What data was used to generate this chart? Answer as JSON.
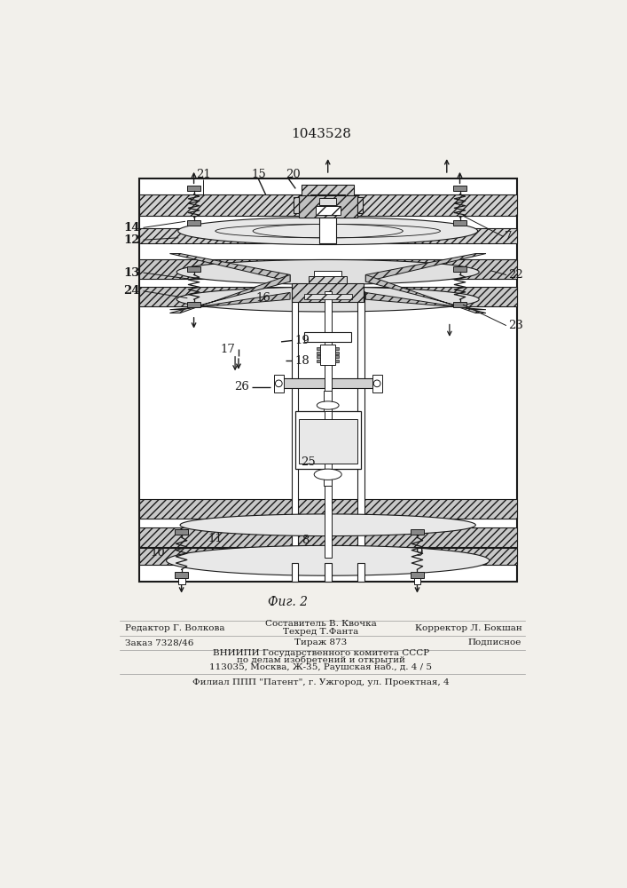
{
  "title": "1043528",
  "figure_label": "Фиг. 2",
  "bg_color": "#f2f0eb",
  "line_color": "#1a1a1a",
  "footer": {
    "editor": "Редактор Г. Волкова",
    "composer": "Составитель В. Квочка",
    "techred": "Техред Т.Фанта",
    "corrector": "Корректор Л. Бокшан",
    "order": "Заказ 7328/46",
    "tirazh": "Тираж 873",
    "podpisnoe": "Подписное",
    "vniip1": "ВНИИПИ Государственного комитета СССР",
    "vniip2": "по делам изобретений и открытий",
    "vniip3": "113035, Москва, Ж-35, Раушская наб., д. 4 / 5",
    "filial": "Филиал ППП \"Патент\", г. Ужгород, ул. Проектная, 4"
  }
}
